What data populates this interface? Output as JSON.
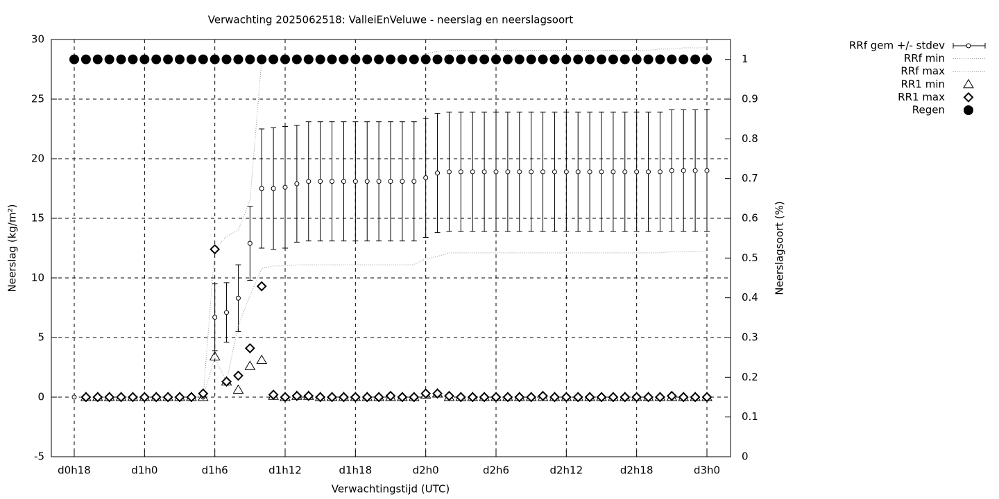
{
  "chart_data": {
    "type": "errorbar-line",
    "title": "Verwachting 2025062518: ValleiEnVeluwe - neerslag en neerslagsoort",
    "xlabel": "Verwachtingstijd (UTC)",
    "ylabel": "Neerslag (kg/m²)",
    "y2label": "Neerslagsoort (%)",
    "categories": [
      "d0h18",
      null,
      null,
      null,
      null,
      null,
      "d1h0",
      null,
      null,
      null,
      null,
      null,
      "d1h6",
      null,
      null,
      null,
      null,
      null,
      "d1h12",
      null,
      null,
      null,
      null,
      null,
      "d1h18",
      null,
      null,
      null,
      null,
      null,
      "d2h0",
      null,
      null,
      null,
      null,
      null,
      "d2h6",
      null,
      null,
      null,
      null,
      null,
      "d2h12",
      null,
      null,
      null,
      null,
      null,
      "d2h18",
      null,
      null,
      null,
      null,
      null,
      "d3h0"
    ],
    "ylim": [
      -5,
      30
    ],
    "yticks": [
      -5,
      0,
      5,
      10,
      15,
      20,
      25,
      30
    ],
    "y2lim": [
      0,
      1.05
    ],
    "y2ticks": [
      0,
      0.1,
      0.2,
      0.3,
      0.4,
      0.5,
      0.6,
      0.7,
      0.8,
      0.9,
      1
    ],
    "grid": true,
    "legend": "top-right",
    "series": [
      {
        "name": "RRf gem +/- stdev",
        "marker": "errorbar",
        "color": "#000000",
        "values": [
          0,
          0,
          0,
          0,
          0,
          0,
          0,
          0,
          0,
          0,
          0,
          0,
          6.7,
          7.1,
          8.3,
          12.9,
          17.5,
          17.5,
          17.6,
          17.9,
          18.1,
          18.1,
          18.1,
          18.1,
          18.1,
          18.1,
          18.1,
          18.1,
          18.1,
          18.1,
          18.4,
          18.8,
          18.9,
          18.9,
          18.9,
          18.9,
          18.9,
          18.9,
          18.9,
          18.9,
          18.9,
          18.9,
          18.9,
          18.9,
          18.9,
          18.9,
          18.9,
          18.9,
          18.9,
          18.9,
          18.9,
          19.0,
          19.0,
          19.0,
          19.0
        ],
        "errors": [
          0,
          0,
          0,
          0,
          0,
          0,
          0,
          0,
          0,
          0,
          0,
          0,
          2.8,
          2.5,
          2.8,
          3.1,
          5.0,
          5.1,
          5.1,
          4.9,
          5.0,
          5.0,
          5.0,
          5.0,
          5.0,
          5.0,
          5.0,
          5.0,
          5.0,
          5.0,
          5.0,
          5.0,
          5.0,
          5.0,
          5.0,
          5.0,
          5.0,
          5.0,
          5.0,
          5.0,
          5.0,
          5.0,
          5.0,
          5.0,
          5.0,
          5.0,
          5.0,
          5.0,
          5.0,
          5.0,
          5.0,
          5.1,
          5.1,
          5.1,
          5.1
        ]
      },
      {
        "name": "RRf min",
        "marker": "dotted",
        "color": "#999999",
        "values": [
          0,
          0,
          0,
          0,
          0,
          0,
          0,
          0,
          0,
          0,
          0,
          0,
          3.3,
          1.3,
          6.0,
          8.5,
          10.8,
          11.0,
          11.0,
          11.1,
          11.1,
          11.1,
          11.1,
          11.1,
          11.1,
          11.1,
          11.1,
          11.1,
          11.1,
          11.1,
          11.6,
          11.8,
          12.1,
          12.1,
          12.1,
          12.1,
          12.1,
          12.1,
          12.1,
          12.1,
          12.1,
          12.1,
          12.1,
          12.1,
          12.1,
          12.1,
          12.1,
          12.1,
          12.1,
          12.1,
          12.1,
          12.2,
          12.2,
          12.2,
          12.2
        ]
      },
      {
        "name": "RRf max",
        "marker": "dotted",
        "color": "#999999",
        "values": [
          0,
          0,
          0,
          0,
          0,
          0,
          0,
          0,
          0,
          0,
          0,
          0,
          12.4,
          13.5,
          14.0,
          16.5,
          28.3,
          28.3,
          28.3,
          28.3,
          28.3,
          28.3,
          28.3,
          28.3,
          28.3,
          28.3,
          28.3,
          28.3,
          28.3,
          28.3,
          28.8,
          29.0,
          29.1,
          29.1,
          29.1,
          29.1,
          29.1,
          29.1,
          29.1,
          29.1,
          29.1,
          29.1,
          29.1,
          29.1,
          29.1,
          29.1,
          29.1,
          29.1,
          29.1,
          29.1,
          29.2,
          29.2,
          29.3,
          29.3,
          29.3
        ]
      },
      {
        "name": "RR1 min",
        "marker": "triangle",
        "color": "#000000",
        "values": [
          null,
          0,
          0,
          0,
          0,
          0,
          0,
          0,
          0,
          0,
          0,
          0,
          3.4,
          1.3,
          0.6,
          2.6,
          3.1,
          0.1,
          0,
          0.1,
          0.1,
          0,
          0,
          0,
          0,
          0,
          0,
          0,
          0,
          0,
          0.2,
          0.3,
          0,
          0,
          0,
          0,
          0,
          0,
          0,
          0,
          0,
          0,
          0,
          0,
          0,
          0,
          0,
          0,
          0,
          0,
          0,
          0,
          0,
          0,
          0
        ]
      },
      {
        "name": "RR1 max",
        "marker": "diamond",
        "color": "#000000",
        "values": [
          null,
          0,
          0,
          0,
          0,
          0,
          0,
          0,
          0,
          0,
          0,
          0.3,
          12.4,
          1.3,
          1.8,
          4.1,
          9.3,
          0.2,
          0,
          0.1,
          0.1,
          0,
          0,
          0,
          0,
          0,
          0,
          0.1,
          0,
          0,
          0.3,
          0.3,
          0.1,
          0,
          0,
          0,
          0,
          0,
          0,
          0,
          0.1,
          0,
          0,
          0,
          0,
          0,
          0,
          0,
          0,
          0,
          0,
          0.1,
          0,
          0,
          0
        ]
      },
      {
        "name": "Regen",
        "marker": "disc",
        "color": "#000000",
        "axis": "y2",
        "values": [
          1,
          1,
          1,
          1,
          1,
          1,
          1,
          1,
          1,
          1,
          1,
          1,
          1,
          1,
          1,
          1,
          1,
          1,
          1,
          1,
          1,
          1,
          1,
          1,
          1,
          1,
          1,
          1,
          1,
          1,
          1,
          1,
          1,
          1,
          1,
          1,
          1,
          1,
          1,
          1,
          1,
          1,
          1,
          1,
          1,
          1,
          1,
          1,
          1,
          1,
          1,
          1,
          1,
          1,
          1
        ]
      }
    ]
  }
}
